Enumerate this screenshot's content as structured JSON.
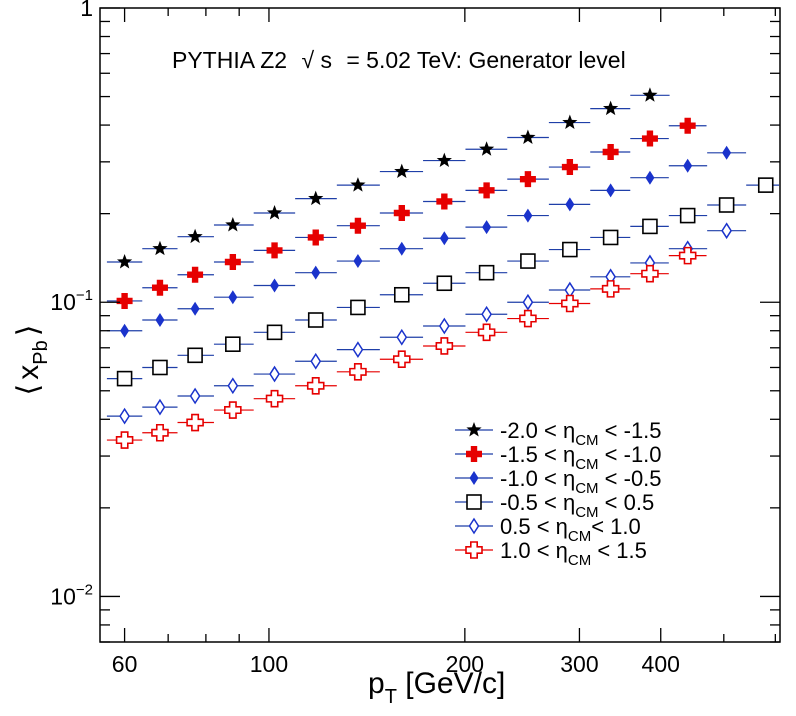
{
  "chart_data": {
    "type": "scatter",
    "title": "PYTHIA Z2",
    "title_root_symbol": "√",
    "title_root_arg": "s",
    "title_rest": "= 5.02 TeV: Generator level",
    "xlabel": {
      "main": "p",
      "sub": "T",
      "rest": " [GeV/c]"
    },
    "ylabel": {
      "left": "⟨",
      "main": "x",
      "sub": "Pb",
      "right": "⟩"
    },
    "xscale": "log",
    "yscale": "log",
    "xlim": [
      55,
      610
    ],
    "ylim": [
      0.007,
      1
    ],
    "grid": false,
    "legend_position": "bottom-right",
    "x_tick_labels": [
      {
        "value": 60,
        "label": "60"
      },
      {
        "value": 100,
        "label": "100"
      },
      {
        "value": 200,
        "label": "200"
      },
      {
        "value": 300,
        "label": "300"
      },
      {
        "value": 400,
        "label": "400"
      }
    ],
    "y_tick_labels": [
      {
        "value": 1,
        "base": "1",
        "exp": ""
      },
      {
        "value": 0.1,
        "base": "10",
        "exp": "−1"
      },
      {
        "value": 0.01,
        "base": "10",
        "exp": "−2"
      }
    ],
    "series": [
      {
        "name": "-2.0 < η_CM < -1.5",
        "legend": {
          "pre": "-2.0 < η",
          "sub": "CM",
          "post": " < -1.5"
        },
        "marker": "star",
        "color": "#000000",
        "line_color": "#1f3fa8",
        "x": [
          60,
          68,
          77,
          88,
          102,
          118,
          137,
          160,
          186,
          216,
          250,
          290,
          335,
          385
        ],
        "y": [
          0.137,
          0.152,
          0.167,
          0.183,
          0.201,
          0.225,
          0.25,
          0.278,
          0.303,
          0.331,
          0.363,
          0.408,
          0.455,
          0.505
        ]
      },
      {
        "name": "-1.5 < η_CM < -1.0",
        "legend": {
          "pre": "-1.5 < η",
          "sub": "CM",
          "post": " < -1.0"
        },
        "marker": "fullcross",
        "color": "#e60000",
        "line_color": "#1f3fa8",
        "x": [
          60,
          68,
          77,
          88,
          102,
          118,
          137,
          160,
          186,
          216,
          250,
          290,
          335,
          385,
          440
        ],
        "y": [
          0.101,
          0.112,
          0.124,
          0.137,
          0.15,
          0.166,
          0.182,
          0.201,
          0.22,
          0.24,
          0.262,
          0.288,
          0.324,
          0.36,
          0.398
        ]
      },
      {
        "name": "-1.0 < η_CM < -0.5",
        "legend": {
          "pre": "-1.0 < η",
          "sub": "CM",
          "post": " < -0.5"
        },
        "marker": "fulldiamond",
        "color": "#1a33cc",
        "line_color": "#1f3fa8",
        "x": [
          60,
          68,
          77,
          88,
          102,
          118,
          137,
          160,
          186,
          216,
          250,
          290,
          335,
          385,
          440,
          505
        ],
        "y": [
          0.08,
          0.087,
          0.095,
          0.104,
          0.114,
          0.126,
          0.138,
          0.152,
          0.165,
          0.18,
          0.197,
          0.215,
          0.24,
          0.265,
          0.291,
          0.322
        ]
      },
      {
        "name": "-0.5 < η_CM < 0.5",
        "legend": {
          "pre": "-0.5 < η",
          "sub": "CM",
          "post": " < 0.5"
        },
        "marker": "opensquare",
        "color": "#000000",
        "line_color": "#1f3fa8",
        "x": [
          60,
          68,
          77,
          88,
          102,
          118,
          137,
          160,
          186,
          216,
          250,
          290,
          335,
          385,
          440,
          505,
          580
        ],
        "y": [
          0.055,
          0.06,
          0.066,
          0.072,
          0.079,
          0.087,
          0.096,
          0.106,
          0.116,
          0.126,
          0.138,
          0.151,
          0.166,
          0.181,
          0.197,
          0.214,
          0.25
        ]
      },
      {
        "name": "0.5 < η_CM < 1.0",
        "legend": {
          "pre": "0.5 < η",
          "sub": "CM",
          "post": "< 1.0"
        },
        "marker": "opendiamond",
        "color": "#1a33cc",
        "line_color": "#1f3fa8",
        "x": [
          60,
          68,
          77,
          88,
          102,
          118,
          137,
          160,
          186,
          216,
          250,
          290,
          335,
          385,
          440,
          505
        ],
        "y": [
          0.041,
          0.044,
          0.048,
          0.052,
          0.057,
          0.063,
          0.069,
          0.076,
          0.083,
          0.091,
          0.1,
          0.11,
          0.122,
          0.136,
          0.152,
          0.175
        ]
      },
      {
        "name": "1.0 < η_CM < 1.5",
        "legend": {
          "pre": "1.0 < η",
          "sub": "CM",
          "post": " < 1.5"
        },
        "marker": "opencross",
        "color": "#e60000",
        "line_color": "#e60000",
        "x": [
          60,
          68,
          77,
          88,
          102,
          118,
          137,
          160,
          186,
          216,
          250,
          290,
          335,
          385,
          440
        ],
        "y": [
          0.034,
          0.036,
          0.039,
          0.043,
          0.047,
          0.052,
          0.058,
          0.064,
          0.071,
          0.079,
          0.088,
          0.099,
          0.111,
          0.125,
          0.144
        ]
      }
    ]
  }
}
